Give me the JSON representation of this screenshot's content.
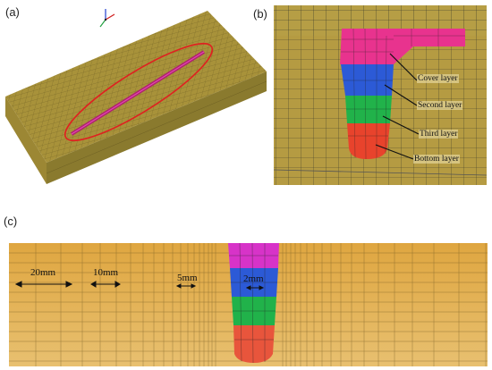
{
  "panels": {
    "a": {
      "label": "(a)"
    },
    "b": {
      "label": "(b)",
      "layers": [
        "Cover layer",
        "Second layer",
        "Third layer",
        "Bottom layer"
      ]
    },
    "c": {
      "label": "(c)",
      "dimensions": [
        "20mm",
        "10mm",
        "5mm",
        "2mm"
      ]
    }
  },
  "colors": {
    "plate": "#a8923a",
    "plate_side": "#8a7a2e",
    "bg_mesh": "#d9a94a",
    "cover": "#e8338e",
    "second": "#2c5ad6",
    "third": "#21b24a",
    "bottom": "#e8432c",
    "ellipse": "#e02020"
  }
}
